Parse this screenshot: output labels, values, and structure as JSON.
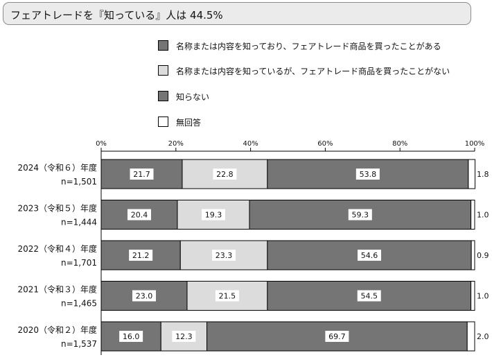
{
  "title": "フェアトレードを『知っている』人は 44.5%",
  "colors": {
    "know_not_bought": "#757575",
    "know_bought": "#dcdcdc",
    "dont_know": "#757575",
    "no_answer": "#ffffff"
  },
  "chart_data": {
    "type": "bar",
    "orientation": "horizontal",
    "stacked": true,
    "xlim": [
      0,
      100
    ],
    "x_ticks": [
      "0%",
      "20%",
      "40%",
      "60%",
      "80%",
      "100%"
    ],
    "grid": false,
    "legend_position": "top",
    "categories": [
      {
        "year": "2024（令和６）年度",
        "n": "n=1,501"
      },
      {
        "year": "2023（令和５）年度",
        "n": "n=1,444"
      },
      {
        "year": "2022（令和４）年度",
        "n": "n=1,701"
      },
      {
        "year": "2021（令和３）年度",
        "n": "n=1,465"
      },
      {
        "year": "2020（令和２）年度",
        "n": "n=1,537"
      }
    ],
    "series": [
      {
        "name": "名称または内容を知っており、フェアトレード商品を買ったことがある",
        "values": [
          21.7,
          20.4,
          21.2,
          23.0,
          16.0
        ],
        "labels": [
          "21.7",
          "20.4",
          "21.2",
          "23.0",
          "16.0"
        ]
      },
      {
        "name": "名称または内容を知っているが、フェアトレード商品を買ったことがない",
        "values": [
          22.8,
          19.3,
          23.3,
          21.5,
          12.3
        ],
        "labels": [
          "22.8",
          "19.3",
          "23.3",
          "21.5",
          "12.3"
        ]
      },
      {
        "name": "知らない",
        "values": [
          53.8,
          59.3,
          54.6,
          54.5,
          69.7
        ],
        "labels": [
          "53.8",
          "59.3",
          "54.6",
          "54.5",
          "69.7"
        ]
      },
      {
        "name": "無回答",
        "values": [
          1.8,
          1.0,
          0.9,
          1.0,
          2.0
        ],
        "labels": [
          "1.8",
          "1.0",
          "0.9",
          "1.0",
          "2.0"
        ]
      }
    ]
  }
}
